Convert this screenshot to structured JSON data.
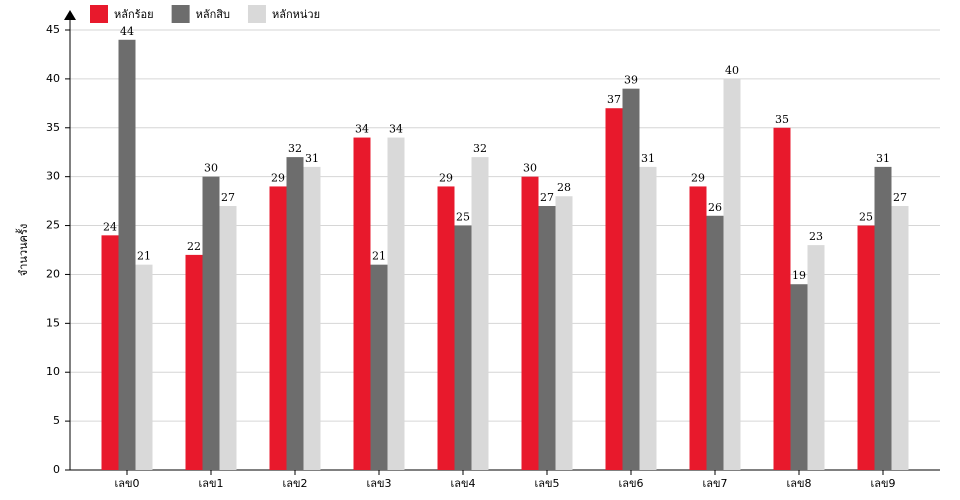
{
  "chart_data": {
    "type": "bar",
    "y_label": "จำนวนครั้ง",
    "categories": [
      "เลข0",
      "เลข1",
      "เลข2",
      "เลข3",
      "เลข4",
      "เลข5",
      "เลข6",
      "เลข7",
      "เลข8",
      "เลข9"
    ],
    "series": [
      {
        "name": "หลักร้อย",
        "color": "#e8192c",
        "values": [
          24,
          22,
          29,
          34,
          29,
          30,
          37,
          29,
          35,
          25
        ]
      },
      {
        "name": "หลักสิบ",
        "color": "#6d6d6d",
        "values": [
          44,
          30,
          32,
          21,
          25,
          27,
          39,
          26,
          19,
          31
        ]
      },
      {
        "name": "หลักหน่วย",
        "color": "#d9d9d9",
        "values": [
          21,
          27,
          31,
          34,
          32,
          28,
          31,
          40,
          23,
          27
        ]
      }
    ],
    "ylim": [
      0,
      45
    ],
    "yticks": [
      0,
      5,
      10,
      15,
      20,
      25,
      30,
      35,
      40,
      45
    ],
    "grid": true
  }
}
